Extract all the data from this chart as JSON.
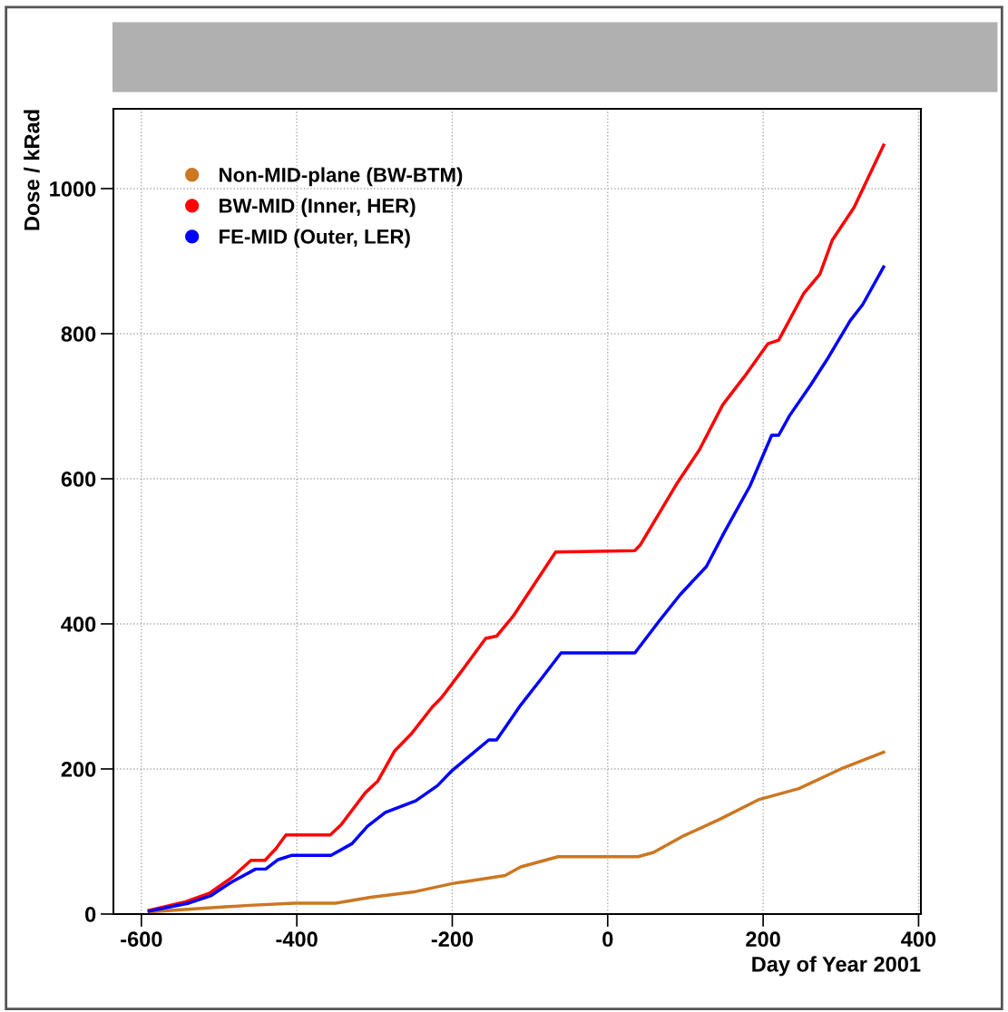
{
  "chart_data": {
    "type": "line",
    "xlabel": "Day of Year 2001",
    "ylabel": "Dose / kRad",
    "xlim": [
      -636,
      403
    ],
    "ylim": [
      0,
      1110
    ],
    "xticks": [
      -600,
      -400,
      -200,
      0,
      200,
      400
    ],
    "yticks": [
      0,
      200,
      400,
      600,
      800,
      1000
    ],
    "grid": true,
    "legend": "top left",
    "marker": "none",
    "line_style": "solid",
    "series": [
      {
        "name": "Non-MID-plane (BW-BTM)",
        "color": "#cc7722",
        "x": [
          -590,
          -461,
          -403,
          -350,
          -305,
          -247,
          -200,
          -151,
          -132,
          -112,
          -64,
          39,
          59,
          98,
          145,
          195,
          246,
          300,
          355
        ],
        "values": [
          3,
          12,
          15,
          15,
          23,
          31,
          42,
          50,
          53,
          65,
          79,
          79,
          85,
          108,
          131,
          158,
          173,
          200,
          223
        ]
      },
      {
        "name": "BW-MID (Inner, HER)",
        "color": "#ff0000",
        "x": [
          -590,
          -543,
          -512,
          -484,
          -459,
          -441,
          -427,
          -414,
          -357,
          -343,
          -312,
          -296,
          -274,
          -253,
          -226,
          -214,
          -190,
          -157,
          -143,
          -122,
          -67,
          35,
          42,
          90,
          118,
          148,
          176,
          206,
          220,
          252,
          273,
          289,
          317,
          355
        ],
        "values": [
          5,
          17,
          29,
          50,
          74,
          74,
          90,
          109,
          109,
          123,
          167,
          183,
          225,
          248,
          285,
          298,
          332,
          380,
          383,
          410,
          499,
          501,
          509,
          595,
          640,
          702,
          741,
          786,
          791,
          855,
          882,
          929,
          974,
          1060
        ]
      },
      {
        "name": "FE-MID (Outer, LER)",
        "color": "#0000ff",
        "x": [
          -590,
          -539,
          -511,
          -484,
          -453,
          -440,
          -424,
          -406,
          -356,
          -329,
          -309,
          -286,
          -247,
          -219,
          -200,
          -153,
          -143,
          -130,
          -112,
          -85,
          -60,
          35,
          67,
          93,
          127,
          150,
          183,
          211,
          220,
          234,
          261,
          282,
          312,
          328,
          355
        ],
        "values": [
          4,
          15,
          25,
          44,
          62,
          62,
          75,
          81,
          81,
          97,
          121,
          140,
          156,
          177,
          198,
          240,
          240,
          260,
          288,
          325,
          360,
          360,
          405,
          440,
          479,
          526,
          590,
          660,
          660,
          687,
          729,
          764,
          818,
          840,
          892
        ]
      }
    ]
  }
}
